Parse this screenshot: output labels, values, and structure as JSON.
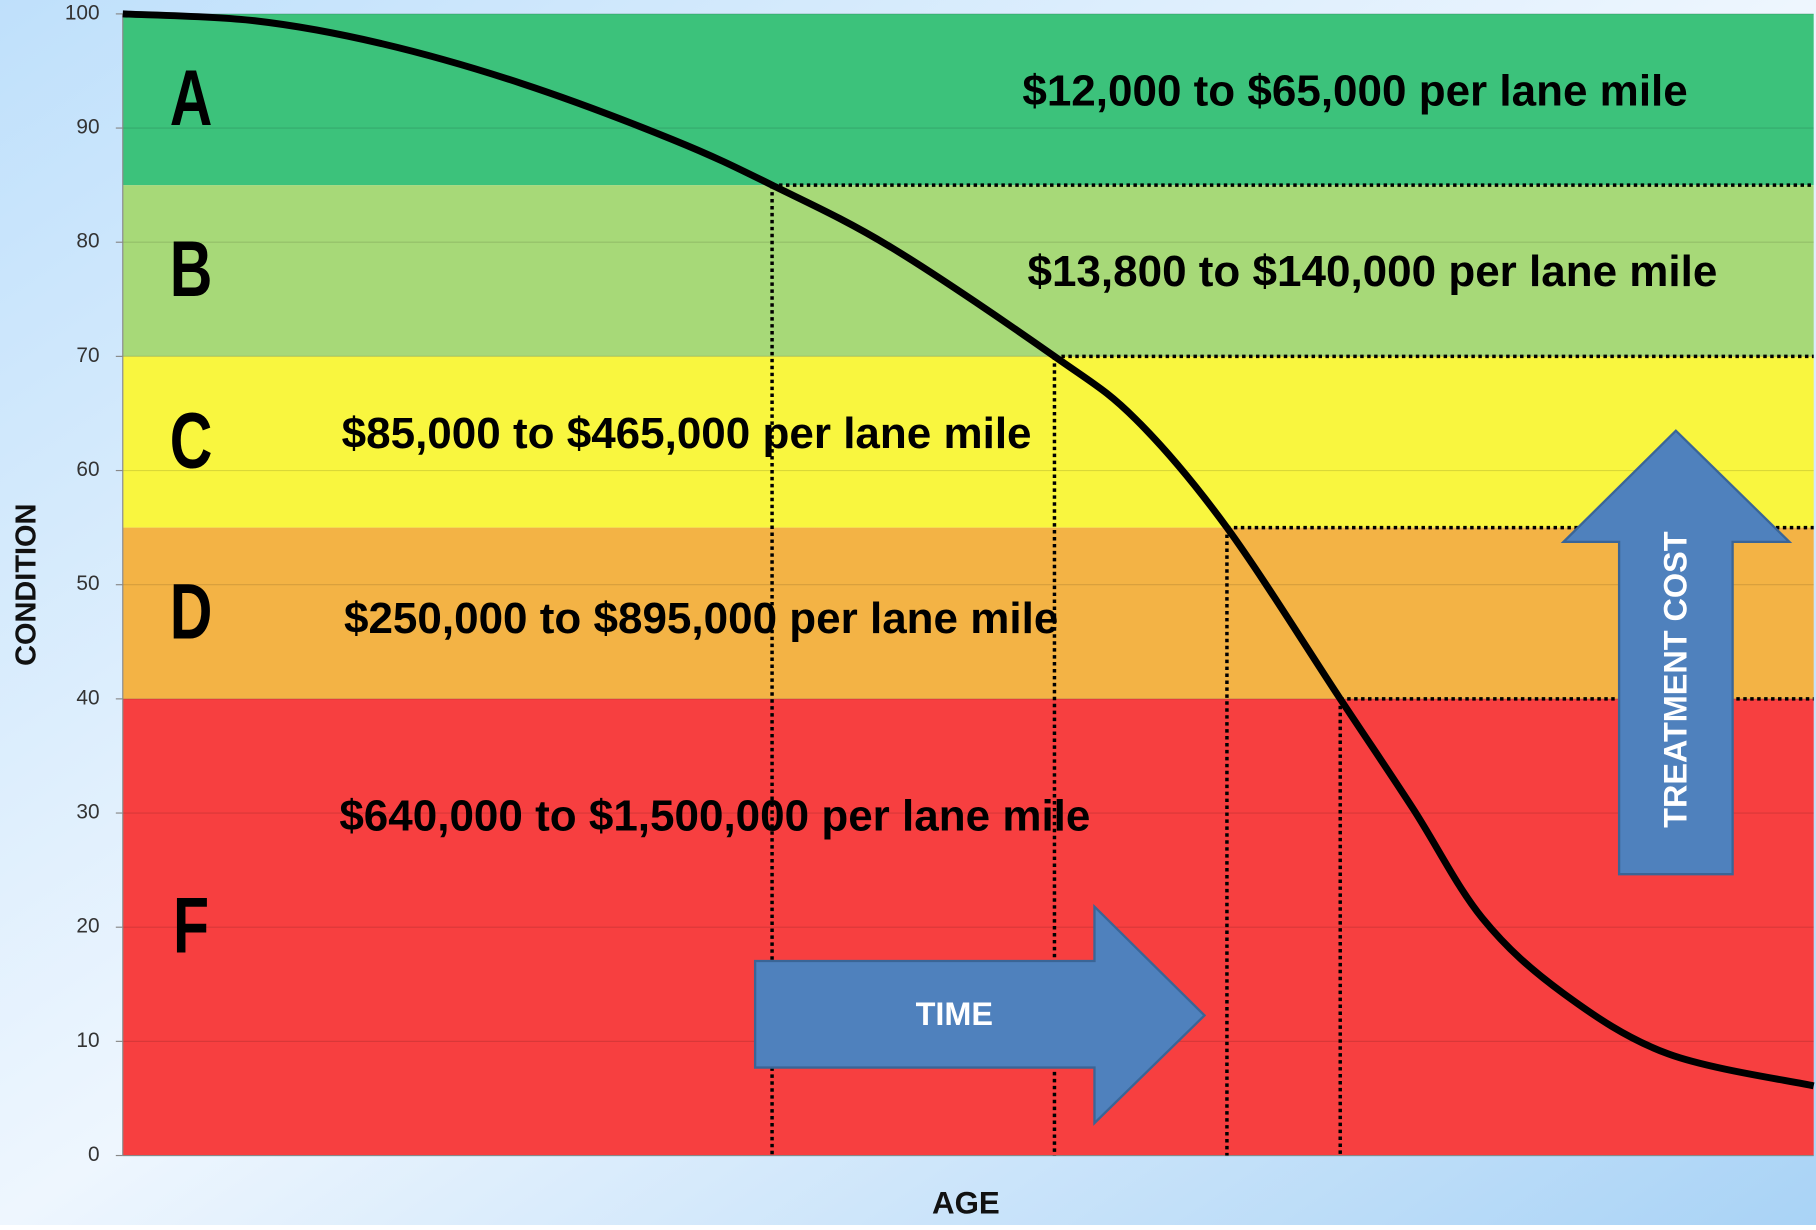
{
  "chart_data": {
    "type": "line",
    "x_label": "AGE",
    "y_label": "CONDITION",
    "xlim": [
      0,
      100
    ],
    "ylim": [
      0,
      100
    ],
    "yticks": [
      0,
      10,
      20,
      30,
      40,
      50,
      60,
      70,
      80,
      90,
      100
    ],
    "grid": true,
    "bands": [
      {
        "grade": "A",
        "from": 85,
        "to": 100,
        "color": "#3cc27b",
        "cost": "$12,000 to $65,000 per lane mile"
      },
      {
        "grade": "B",
        "from": 70,
        "to": 85,
        "color": "#a7d978",
        "cost": "$13,800 to $140,000 per lane mile"
      },
      {
        "grade": "C",
        "from": 55,
        "to": 70,
        "color": "#f9f63f",
        "cost": "$85,000 to $465,000 per lane mile"
      },
      {
        "grade": "D",
        "from": 40,
        "to": 55,
        "color": "#f3b345",
        "cost": "$250,000 to $895,000 per lane mile"
      },
      {
        "grade": "F",
        "from": 0,
        "to": 40,
        "color": "#f73f40",
        "cost": "$640,000 to $1,500,000 per lane mile"
      }
    ],
    "series": [
      {
        "color": "#000000",
        "x": [
          0,
          7.8,
          15.3,
          23.6,
          32.5,
          38.4,
          45.5,
          55.1,
          59.9,
          65.3,
          72,
          76.3,
          80.4,
          85.2,
          91.4,
          100
        ],
        "values": [
          100,
          99.4,
          97.4,
          93.9,
          89,
          85,
          79.5,
          70,
          64.5,
          55,
          40,
          30.4,
          20.8,
          14.2,
          8.9,
          6.1
        ]
      }
    ],
    "thresholds": {
      "x": [
        38.4,
        55.1,
        65.3,
        72
      ],
      "y": [
        85,
        70,
        55,
        40
      ]
    },
    "annotations": {
      "time": "TIME",
      "cost": "TREATMENT COST"
    }
  }
}
